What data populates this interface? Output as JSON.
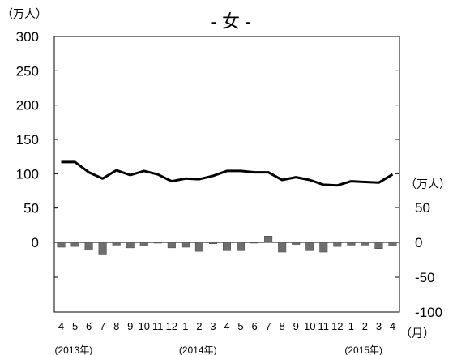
{
  "chart_data": {
    "type": "bar+line",
    "title": "- 女 -",
    "left_axis": {
      "unit": "（万人）",
      "ylim": [
        0,
        300
      ],
      "ticks": [
        "0",
        "50",
        "100",
        "150",
        "200",
        "250",
        "300"
      ]
    },
    "right_axis": {
      "unit": "（万人）",
      "ylim": [
        -100,
        50
      ],
      "ticks": [
        "50",
        "0",
        "-50",
        "-100"
      ]
    },
    "x": {
      "unit": "（月）",
      "months": [
        "4",
        "5",
        "6",
        "7",
        "8",
        "9",
        "10",
        "11",
        "12",
        "1",
        "2",
        "3",
        "4",
        "5",
        "6",
        "7",
        "8",
        "9",
        "10",
        "11",
        "12",
        "1",
        "2",
        "3",
        "4"
      ],
      "years": [
        {
          "label": "(2013年)",
          "start_index": 0
        },
        {
          "label": "(2014年)",
          "start_index": 9
        },
        {
          "label": "(2015年)",
          "start_index": 21
        }
      ]
    },
    "series": [
      {
        "type": "line",
        "axis": "left",
        "color": "#000000",
        "values": [
          117,
          117,
          102,
          93,
          105,
          98,
          104,
          99,
          89,
          93,
          92,
          97,
          104,
          104,
          102,
          102,
          91,
          95,
          91,
          84,
          83,
          89,
          88,
          87,
          99
        ]
      },
      {
        "type": "bar",
        "axis": "right",
        "color": "#6e6e6e",
        "values": [
          -7,
          -6,
          -11,
          -18,
          -4,
          -8,
          -5,
          -1,
          -8,
          -7,
          -13,
          -2,
          -12,
          -12,
          -1,
          9,
          -14,
          -3,
          -12,
          -14,
          -6,
          -4,
          -4,
          -9,
          -5
        ]
      }
    ]
  }
}
